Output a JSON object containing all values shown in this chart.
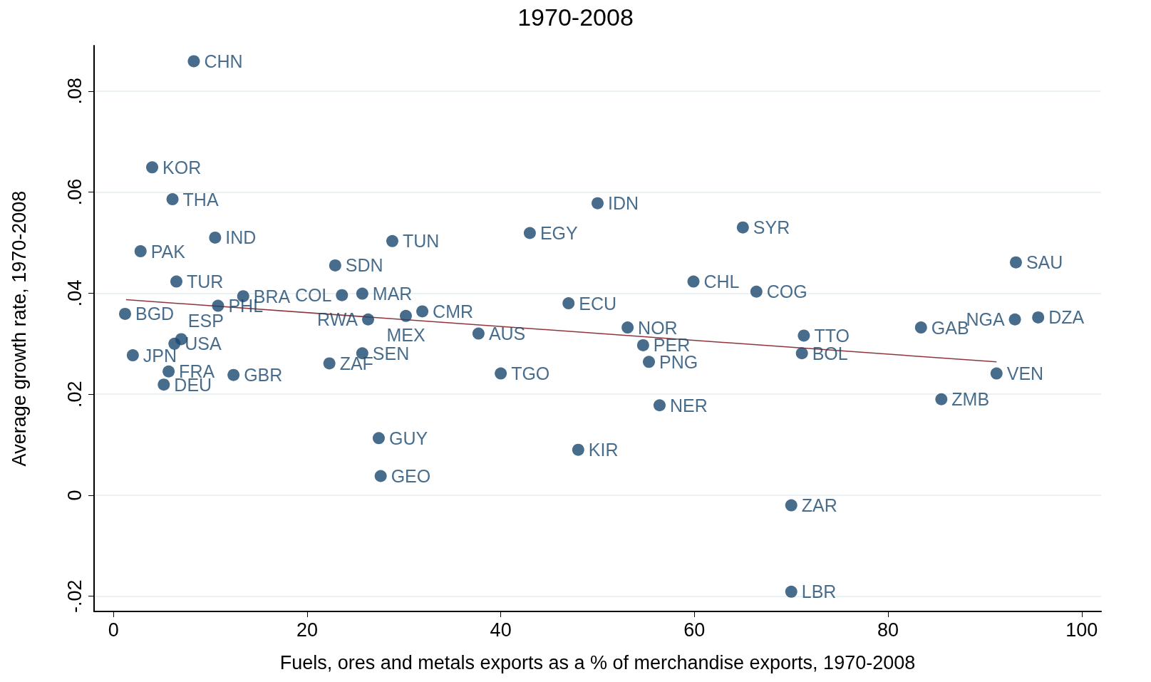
{
  "chart_data": {
    "type": "scatter",
    "title": "1970-2008",
    "xlabel": "Fuels, ores and metals exports as a % of merchandise exports, 1970-2008",
    "ylabel": "Average growth rate, 1970-2008",
    "xlim": [
      -2,
      102
    ],
    "ylim": [
      -0.023,
      0.089
    ],
    "xticks": [
      0,
      20,
      40,
      60,
      80,
      100
    ],
    "yticks": [
      {
        "value": -0.02,
        "label": "-.02"
      },
      0,
      {
        "value": 0.02,
        "label": ".02"
      },
      {
        "value": 0.04,
        "label": ".04"
      },
      {
        "value": 0.06,
        "label": ".06"
      },
      {
        "value": 0.08,
        "label": ".08"
      }
    ],
    "grid": "y",
    "series": [
      {
        "marker": "circle",
        "color": "#1a476f",
        "x": [
          8.3,
          4.0,
          6.1,
          50.0,
          10.5,
          28.8,
          43.0,
          65.0,
          2.8,
          22.9,
          93.2,
          6.5,
          59.9,
          66.4,
          13.4,
          23.6,
          25.7,
          10.8,
          47.0,
          1.2,
          31.9,
          30.2,
          26.3,
          93.1,
          95.5,
          37.7,
          53.1,
          83.4,
          71.3,
          7.0,
          6.3,
          54.7,
          2.0,
          25.7,
          71.1,
          22.3,
          55.3,
          5.7,
          12.4,
          40.0,
          91.2,
          5.2,
          85.5,
          56.4,
          27.4,
          48.0,
          27.6,
          70.0,
          70.0
        ],
        "values": [
          0.0859,
          0.0649,
          0.0586,
          0.0578,
          0.051,
          0.0503,
          0.0519,
          0.053,
          0.0483,
          0.0455,
          0.0461,
          0.0423,
          0.0423,
          0.0403,
          0.0394,
          0.0396,
          0.0399,
          0.0375,
          0.038,
          0.0359,
          0.0364,
          0.0355,
          0.0348,
          0.0348,
          0.0352,
          0.032,
          0.0332,
          0.0332,
          0.0316,
          0.0309,
          0.03,
          0.0297,
          0.0277,
          0.0281,
          0.0281,
          0.0261,
          0.0264,
          0.0245,
          0.0238,
          0.0241,
          0.0241,
          0.0219,
          0.019,
          0.0178,
          0.0113,
          0.009,
          0.0038,
          -0.002,
          -0.0191
        ],
        "value_labels": [
          "CHN",
          "KOR",
          "THA",
          "IDN",
          "IND",
          "TUN",
          "EGY",
          "SYR",
          "PAK",
          "SDN",
          "SAU",
          "TUR",
          "CHL",
          "COG",
          "BRA",
          "COL",
          "MAR",
          "PHL",
          "ECU",
          "BGD",
          "CMR",
          "MEX",
          "RWA",
          "NGA",
          "DZA",
          "AUS",
          "NOR",
          "GAB",
          "TTO",
          "ESP",
          "USA",
          "PER",
          "JPN",
          "SEN",
          "BOL",
          "ZAF",
          "PNG",
          "FRA",
          "GBR",
          "TGO",
          "VEN",
          "DEU",
          "ZMB",
          "NER",
          "GUY",
          "KIR",
          "GEO",
          "ZAR",
          "LBR"
        ]
      },
      {
        "type": "line",
        "marker": "none",
        "color": "#90353b",
        "x": [
          1.3,
          91.2
        ],
        "values": [
          0.0387,
          0.0264
        ]
      }
    ]
  }
}
